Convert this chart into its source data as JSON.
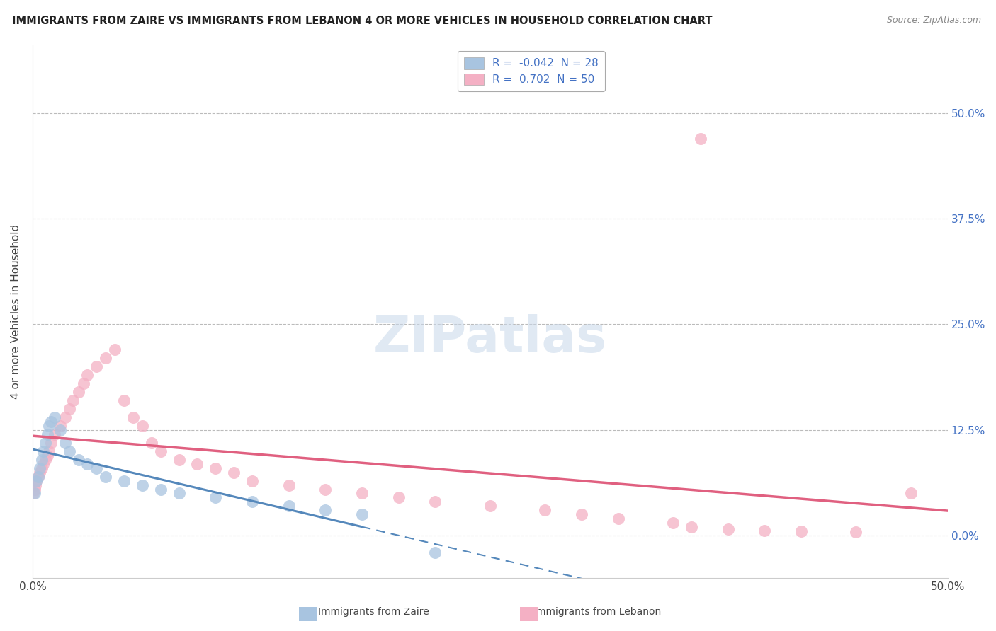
{
  "title": "IMMIGRANTS FROM ZAIRE VS IMMIGRANTS FROM LEBANON 4 OR MORE VEHICLES IN HOUSEHOLD CORRELATION CHART",
  "source": "Source: ZipAtlas.com",
  "ylabel": "4 or more Vehicles in Household",
  "ytick_vals": [
    0,
    12.5,
    25.0,
    37.5,
    50.0
  ],
  "ytick_labels": [
    "0.0%",
    "12.5%",
    "25.0%",
    "37.5%",
    "50.0%"
  ],
  "xlim": [
    0,
    50
  ],
  "ylim": [
    -5,
    58
  ],
  "legend_zaire_R": -0.042,
  "legend_zaire_N": 28,
  "legend_lebanon_R": 0.702,
  "legend_lebanon_N": 50,
  "color_zaire": "#a8c4e0",
  "color_lebanon": "#f4b0c4",
  "line_color_zaire": "#5588bb",
  "line_color_lebanon": "#e06080",
  "watermark": "ZIPatlas",
  "zaire_x": [
    0.1,
    0.2,
    0.3,
    0.4,
    0.5,
    0.6,
    0.7,
    0.8,
    0.9,
    1.0,
    1.2,
    1.5,
    1.8,
    2.0,
    2.5,
    3.0,
    3.5,
    4.0,
    5.0,
    6.0,
    7.0,
    8.0,
    10.0,
    12.0,
    14.0,
    16.0,
    18.0,
    22.0
  ],
  "zaire_y": [
    5.0,
    6.5,
    7.0,
    8.0,
    9.0,
    10.0,
    11.0,
    12.0,
    13.0,
    13.5,
    14.0,
    12.5,
    11.0,
    10.0,
    9.0,
    8.5,
    8.0,
    7.0,
    6.5,
    6.0,
    5.5,
    5.0,
    4.5,
    4.0,
    3.5,
    3.0,
    2.5,
    -2.0
  ],
  "lebanon_x": [
    0.05,
    0.1,
    0.15,
    0.2,
    0.3,
    0.4,
    0.5,
    0.6,
    0.7,
    0.8,
    0.9,
    1.0,
    1.2,
    1.5,
    1.8,
    2.0,
    2.2,
    2.5,
    2.8,
    3.0,
    3.5,
    4.0,
    4.5,
    5.0,
    5.5,
    6.0,
    6.5,
    7.0,
    8.0,
    9.0,
    10.0,
    11.0,
    12.0,
    14.0,
    16.0,
    18.0,
    20.0,
    22.0,
    25.0,
    28.0,
    30.0,
    32.0,
    35.0,
    36.0,
    38.0,
    40.0,
    42.0,
    45.0,
    36.5,
    48.0
  ],
  "lebanon_y": [
    5.0,
    5.5,
    6.0,
    6.5,
    7.0,
    7.5,
    8.0,
    8.5,
    9.0,
    9.5,
    10.0,
    11.0,
    12.0,
    13.0,
    14.0,
    15.0,
    16.0,
    17.0,
    18.0,
    19.0,
    20.0,
    21.0,
    22.0,
    16.0,
    14.0,
    13.0,
    11.0,
    10.0,
    9.0,
    8.5,
    8.0,
    7.5,
    6.5,
    6.0,
    5.5,
    5.0,
    4.5,
    4.0,
    3.5,
    3.0,
    2.5,
    2.0,
    1.5,
    1.0,
    0.8,
    0.6,
    0.5,
    0.4,
    47.0,
    5.0
  ]
}
